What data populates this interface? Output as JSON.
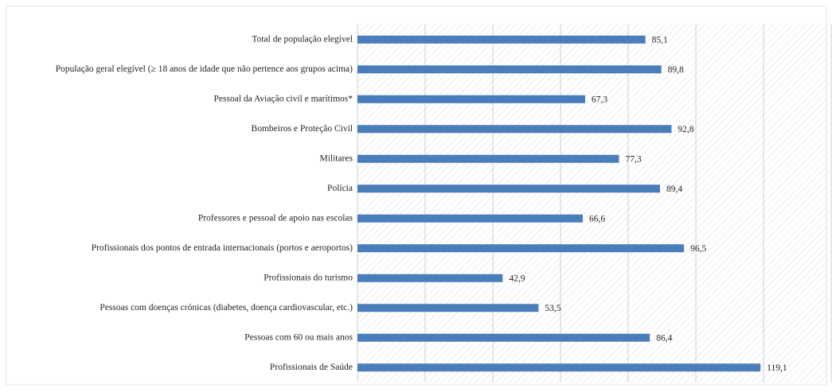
{
  "chart_data": {
    "type": "bar",
    "orientation": "horizontal",
    "categories": [
      "Total de população elegível",
      "População geral elegível (≥ 18 anos de idade que não pertence aos grupos acima)",
      "Pessoal da Aviação civil e marítimos*",
      "Bombeiros e Proteção Civil",
      "Militares",
      "Polícia",
      "Professores e pessoal de apoio nas escolas",
      "Profissionais dos pontos de entrada internacionais (portos e aeroportos)",
      "Profissionais do turismo",
      "Pessoas com doenças crónicas (diabetes, doença cardiovascular, etc.)",
      "Pessoas com 60 ou mais anos",
      "Profissionais de Saúde"
    ],
    "values": [
      85.1,
      89.8,
      67.3,
      92.8,
      77.3,
      89.4,
      66.6,
      96.5,
      42.9,
      53.5,
      86.4,
      119.1
    ],
    "value_labels": [
      "85,1",
      "89,8",
      "67,3",
      "92,8",
      "77,3",
      "89,4",
      "66,6",
      "96,5",
      "42,9",
      "53,5",
      "86,4",
      "119,1"
    ],
    "color": "#4a7ebb",
    "xlim": [
      0,
      140
    ],
    "xticks": [
      0,
      20,
      40,
      60,
      80,
      100,
      120,
      140
    ],
    "grid": true
  }
}
